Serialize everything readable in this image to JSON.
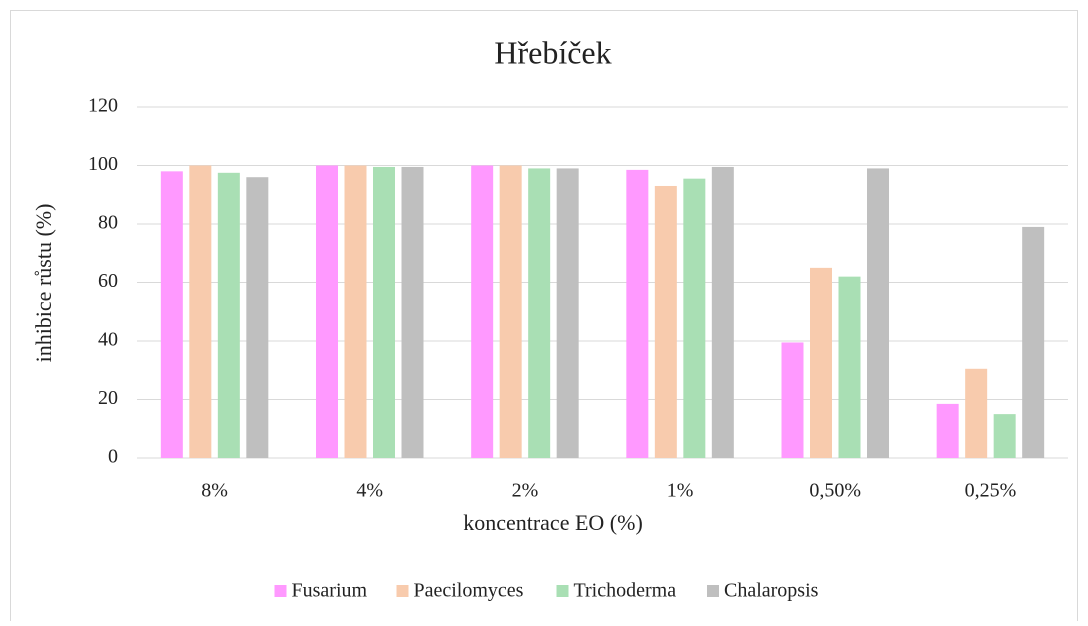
{
  "chart_data": {
    "type": "bar",
    "title": "Hřebíček",
    "xlabel": "koncentrace EO (%)",
    "ylabel": "inhibice růstu (%)",
    "categories": [
      "8%",
      "4%",
      "2%",
      "1%",
      "0,50%",
      "0,25%"
    ],
    "series": [
      {
        "name": "Fusarium",
        "color": "#ff99ff",
        "values": [
          98,
          100,
          100,
          98.5,
          39.5,
          18.5
        ]
      },
      {
        "name": "Paecilomyces",
        "color": "#f8cbad",
        "values": [
          100,
          100,
          100,
          93,
          65,
          30.5
        ]
      },
      {
        "name": "Trichoderma",
        "color": "#a9dfb4",
        "values": [
          97.5,
          99.5,
          99,
          95.5,
          62,
          15
        ]
      },
      {
        "name": "Chalaropsis",
        "color": "#bfbfbf",
        "values": [
          96,
          99.5,
          99,
          99.5,
          99,
          79
        ]
      }
    ],
    "ylim": [
      0,
      120
    ],
    "yticks": [
      0,
      20,
      40,
      60,
      80,
      100,
      120
    ],
    "grid": true,
    "legend": "bottom"
  }
}
